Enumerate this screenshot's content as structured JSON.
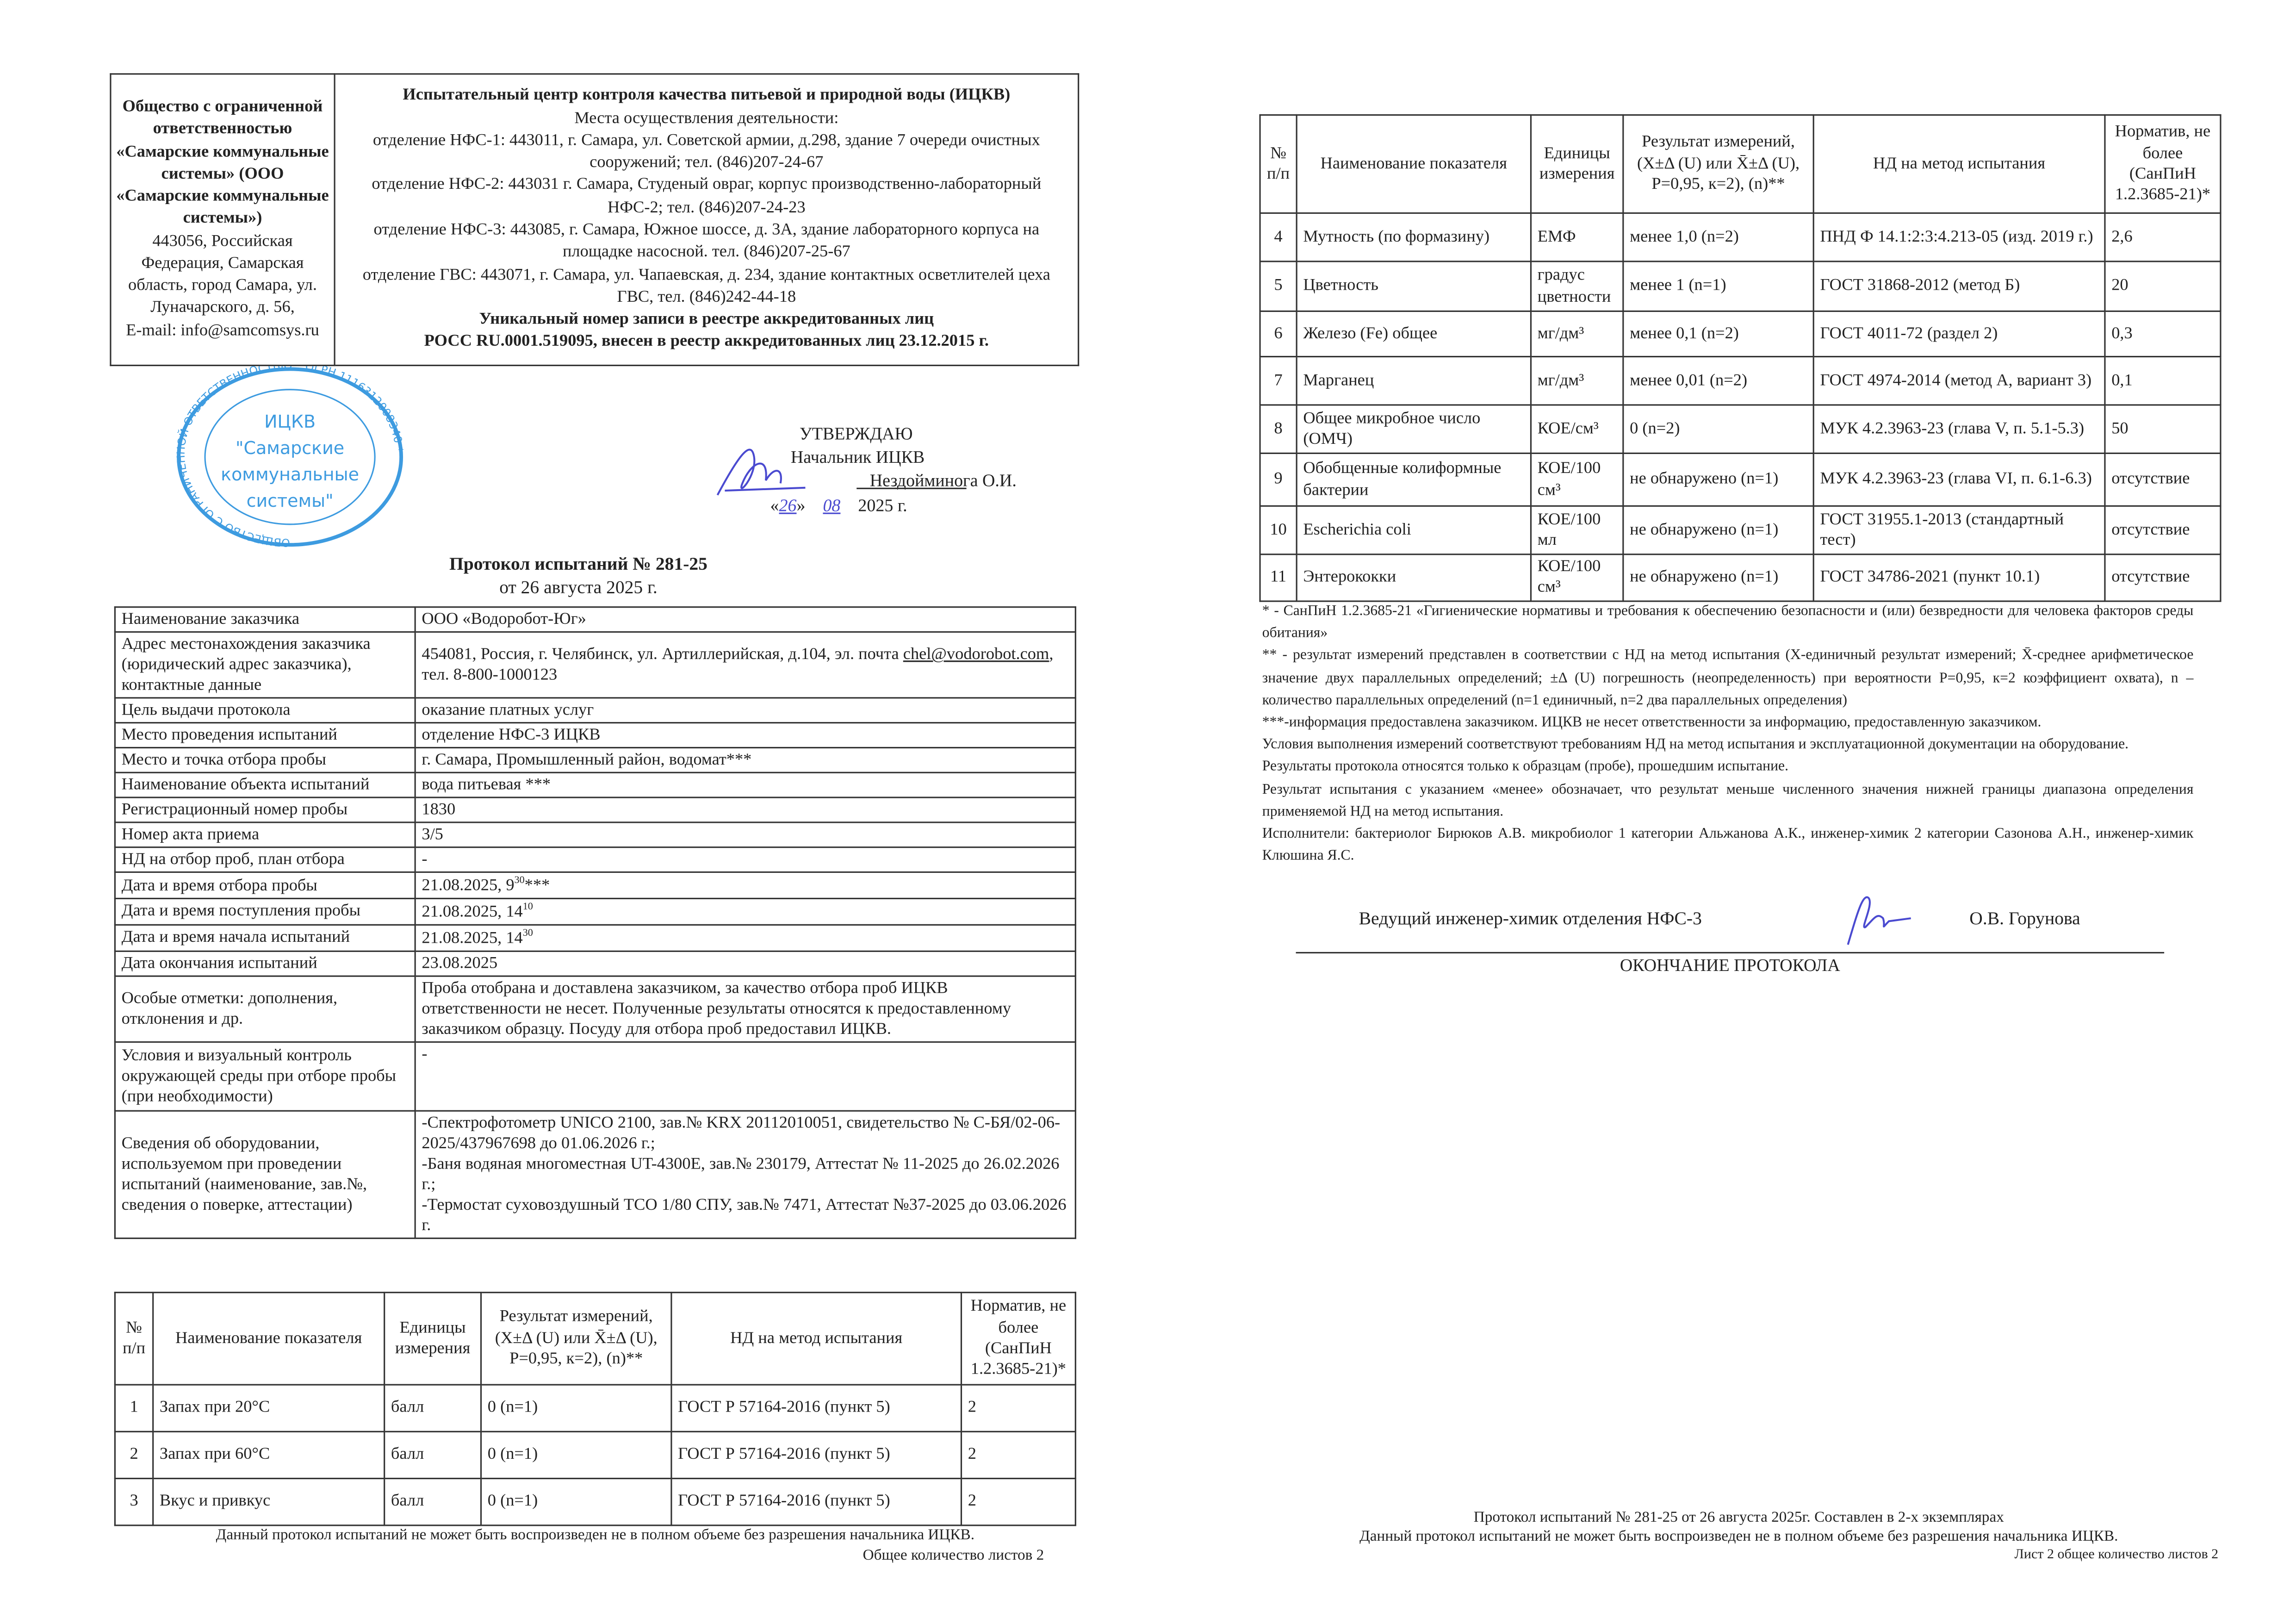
{
  "header": {
    "org_left": {
      "name_bold": "Общество с ограниченной ответственностью «Самарские коммунальные системы» (ООО «Самарские коммунальные системы»)",
      "address": "443056, Российская Федерация, Самарская область, город Самара, ул. Луначарского, д. 56,",
      "email": "E-mail: info@samcomsys.ru"
    },
    "center_title": "Испытательный центр контроля качества питьевой и природной воды (ИЦКВ)",
    "places_label": "Места осуществления деятельности:",
    "branches": [
      "отделение НФС-1: 443011, г. Самара, ул. Советской армии, д.298, здание 7 очереди очистных сооружений; тел. (846)207-24-67",
      "отделение НФС-2: 443031 г. Самара, Студеный овраг, корпус производственно-лабораторный НФС-2; тел. (846)207-24-23",
      "отделение НФС-3: 443085, г. Самара, Южное шоссе, д. 3А, здание лабораторного корпуса на площадке насосной. тел. (846)207-25-67",
      "отделение ГВС: 443071, г. Самара, ул. Чапаевская, д. 234, здание контактных осветлителей цеха ГВС, тел.  (846)242-44-18"
    ],
    "registry_line1": "Уникальный номер записи в реестре аккредитованных лиц",
    "registry_line2": "РОСС RU.0001.519095,  внесен в реестр аккредитованных лиц 23.12.2015 г."
  },
  "stamp": {
    "center": [
      "ИЦКВ",
      "\"Самарские",
      "коммунальные",
      "системы\""
    ],
    "ring": "ОБЩЕСТВО С ОГРАНИЧЕННОЙ ОТВЕТСТВЕННОСТЬЮ * ОГРН 1116312008340 *",
    "color": "#3d9be0"
  },
  "approval": {
    "title": "УТВЕРЖДАЮ",
    "position": "Начальник ИЦКВ",
    "name": "Нездойминога О.И.",
    "date_open": "«",
    "day": "26",
    "date_mid": "»",
    "month": "08",
    "year": "2025 г.",
    "ink_color": "#4a4ad0"
  },
  "protocol": {
    "title": "Протокол испытаний № 281-25",
    "date": "от 26 августа 2025 г."
  },
  "info_rows": [
    {
      "label": "Наименование заказчика",
      "value": "ООО «Водоробот-Юг»"
    },
    {
      "label": "Адрес местонахождения заказчика (юридический адрес заказчика), контактные данные",
      "value": "454081, Россия, г. Челябинск, ул. Артиллерийская, д.104, эл. почта ",
      "link": "chel@vodorobot.com",
      "value_after": ", тел. 8-800-1000123"
    },
    {
      "label": "Цель выдачи протокола",
      "value": "оказание платных услуг"
    },
    {
      "label": "Место проведения испытаний",
      "value": "отделение НФС-3 ИЦКВ"
    },
    {
      "label": "Место и точка отбора пробы",
      "value": "г. Самара, Промышленный район, водомат***"
    },
    {
      "label": "Наименование объекта испытаний",
      "value": "вода питьевая ***"
    },
    {
      "label": "Регистрационный номер пробы",
      "value": "1830"
    },
    {
      "label": "Номер акта приема",
      "value": "3/5"
    },
    {
      "label": "НД на отбор проб, план отбора",
      "value": "-"
    },
    {
      "label": "Дата и время отбора пробы",
      "value": "21.08.2025, 9",
      "sup": "30",
      "value_after": "***"
    },
    {
      "label": "Дата и время поступления пробы",
      "value": "21.08.2025, 14",
      "sup": "10"
    },
    {
      "label": "Дата и время начала испытаний",
      "value": "21.08.2025, 14",
      "sup": "30"
    },
    {
      "label": "Дата окончания испытаний",
      "value": "23.08.2025"
    },
    {
      "label": "Особые отметки: дополнения, отклонения и др.",
      "value": "Проба отобрана и доставлена заказчиком, за качество отбора проб ИЦКВ ответственности не несет. Полученные результаты относятся к предоставленному заказчиком образцу. Посуду для отбора проб предоставил ИЦКВ."
    },
    {
      "label": "Условия и визуальный контроль окружающей среды при отборе пробы (при необходимости)",
      "value": "-",
      "top": true
    },
    {
      "label": "Сведения об оборудовании, используемом при проведении испытаний (наименование, зав.№, сведения о поверке, аттестации)",
      "lines": [
        "-Спектрофотометр UNICO 2100, зав.№ KRX 20112010051, свидетельство № С-БЯ/02-06-2025/437967698 до 01.06.2026 г.;",
        "-Баня водяная многоместная UT-4300E, зав.№ 230179,  Аттестат № 11-2025 до 26.02.2026 г.;",
        "-Термостат суховоздушный ТСО 1/80 СПУ, зав.№ 7471, Аттестат №37-2025 до 03.06.2026 г."
      ]
    }
  ],
  "results_header": {
    "num": "№ п/п",
    "name": "Наименование показателя",
    "unit": "Единицы измерения",
    "result": "Результат измерений, (X±Δ (U) или X̄±Δ (U), P=0,95, к=2), (n)**",
    "method": "НД на метод испытания",
    "norm": "Норматив, не более (СанПиН 1.2.3685-21)*"
  },
  "results_page1": [
    {
      "num": "1",
      "name": "Запах при 20°С",
      "unit": "балл",
      "result": "0 (n=1)",
      "method": "ГОСТ Р 57164-2016 (пункт 5)",
      "norm": "2"
    },
    {
      "num": "2",
      "name": "Запах при 60°С",
      "unit": "балл",
      "result": "0 (n=1)",
      "method": "ГОСТ Р 57164-2016 (пункт 5)",
      "norm": "2"
    },
    {
      "num": "3",
      "name": "Вкус и привкус",
      "unit": "балл",
      "result": "0 (n=1)",
      "method": "ГОСТ Р 57164-2016 (пункт 5)",
      "norm": "2"
    }
  ],
  "results_page2": [
    {
      "num": "4",
      "name": "Мутность (по формазину)",
      "unit": "ЕМФ",
      "result": "менее 1,0 (n=2)",
      "method": "ПНД Ф 14.1:2:3:4.213-05 (изд. 2019 г.)",
      "norm": "2,6"
    },
    {
      "num": "5",
      "name": "Цветность",
      "unit": "градус цветности",
      "result": "менее 1 (n=1)",
      "method": "ГОСТ 31868-2012 (метод Б)",
      "norm": "20"
    },
    {
      "num": "6",
      "name": "Железо (Fe) общее",
      "unit": "мг/дм³",
      "result": "менее 0,1 (n=2)",
      "method": "ГОСТ 4011-72 (раздел 2)",
      "norm": "0,3"
    },
    {
      "num": "7",
      "name": "Марганец",
      "unit": "мг/дм³",
      "result": "менее 0,01 (n=2)",
      "method": "ГОСТ 4974-2014 (метод А, вариант 3)",
      "norm": "0,1"
    },
    {
      "num": "8",
      "name": "Общее микробное число (ОМЧ)",
      "unit": "КОЕ/см³",
      "result": "0 (n=2)",
      "method": "МУК 4.2.3963-23 (глава V, п. 5.1-5.3)",
      "norm": "50"
    },
    {
      "num": "9",
      "name": "Обобщенные колиформные бактерии",
      "unit": "КОЕ/100 см³",
      "result": "не обнаружено (n=1)",
      "method": "МУК 4.2.3963-23 (глава VI, п. 6.1-6.3)",
      "norm": "отсутствие"
    },
    {
      "num": "10",
      "name": "Escherichia coli",
      "unit": "КОЕ/100 мл",
      "result": "не обнаружено (n=1)",
      "method": "ГОСТ 31955.1-2013 (стандартный тест)",
      "norm": "отсутствие"
    },
    {
      "num": "11",
      "name": "Энтерококки",
      "unit": "КОЕ/100 см³",
      "result": "не обнаружено (n=1)",
      "method": "ГОСТ 34786-2021 (пункт 10.1)",
      "norm": "отсутствие"
    }
  ],
  "page1_footer": {
    "disclaimer": "Данный протокол испытаний не может быть воспроизведен не в полном объеме без разрешения начальника ИЦКВ.",
    "sheets": "Общее количество листов 2"
  },
  "notes": [
    "* - СанПиН 1.2.3685-21 «Гигиенические нормативы и требования к обеспечению безопасности и (или) безвредности для человека факторов среды обитания»",
    "** - результат измерений представлен в соответствии с НД на метод испытания (X-единичный результат измерений; X̄-среднее арифметическое значение двух параллельных определений; ±Δ (U) погрешность (неопределенность) при вероятности P=0,95, к=2 коэффициент охвата), n – количество параллельных определений (n=1 единичный, n=2 два параллельных определения)",
    "***-информация предоставлена заказчиком. ИЦКВ не несет ответственности за информацию, предоставленную заказчиком.",
    "Условия выполнения измерений соответствуют требованиям НД на метод испытания и эксплуатационной документации на оборудование.",
    "Результаты протокола относятся только к образцам (пробе), прошедшим испытание.",
    "Результат испытания с указанием «менее» обозначает, что результат меньше численного значения нижней границы диапазона определения применяемой НД на метод испытания.",
    "Исполнители: бактериолог Бирюков А.В. микробиолог 1 категории Альжанова А.К., инженер-химик 2 категории Сазонова А.Н., инженер-химик Клюшина Я.С."
  ],
  "signoff": {
    "position": "Ведущий инженер-химик отделения НФС-3",
    "name": "О.В. Горунова",
    "end": "ОКОНЧАНИЕ ПРОТОКОЛА"
  },
  "page2_footer": {
    "line1": "Протокол испытаний № 281-25 от 26 августа 2025г. Составлен в 2-х экземплярах",
    "disclaimer": "Данный протокол испытаний не может быть воспроизведен не в полном объеме без разрешения начальника ИЦКВ.",
    "sheets": "Лист 2 общее количество листов 2"
  }
}
